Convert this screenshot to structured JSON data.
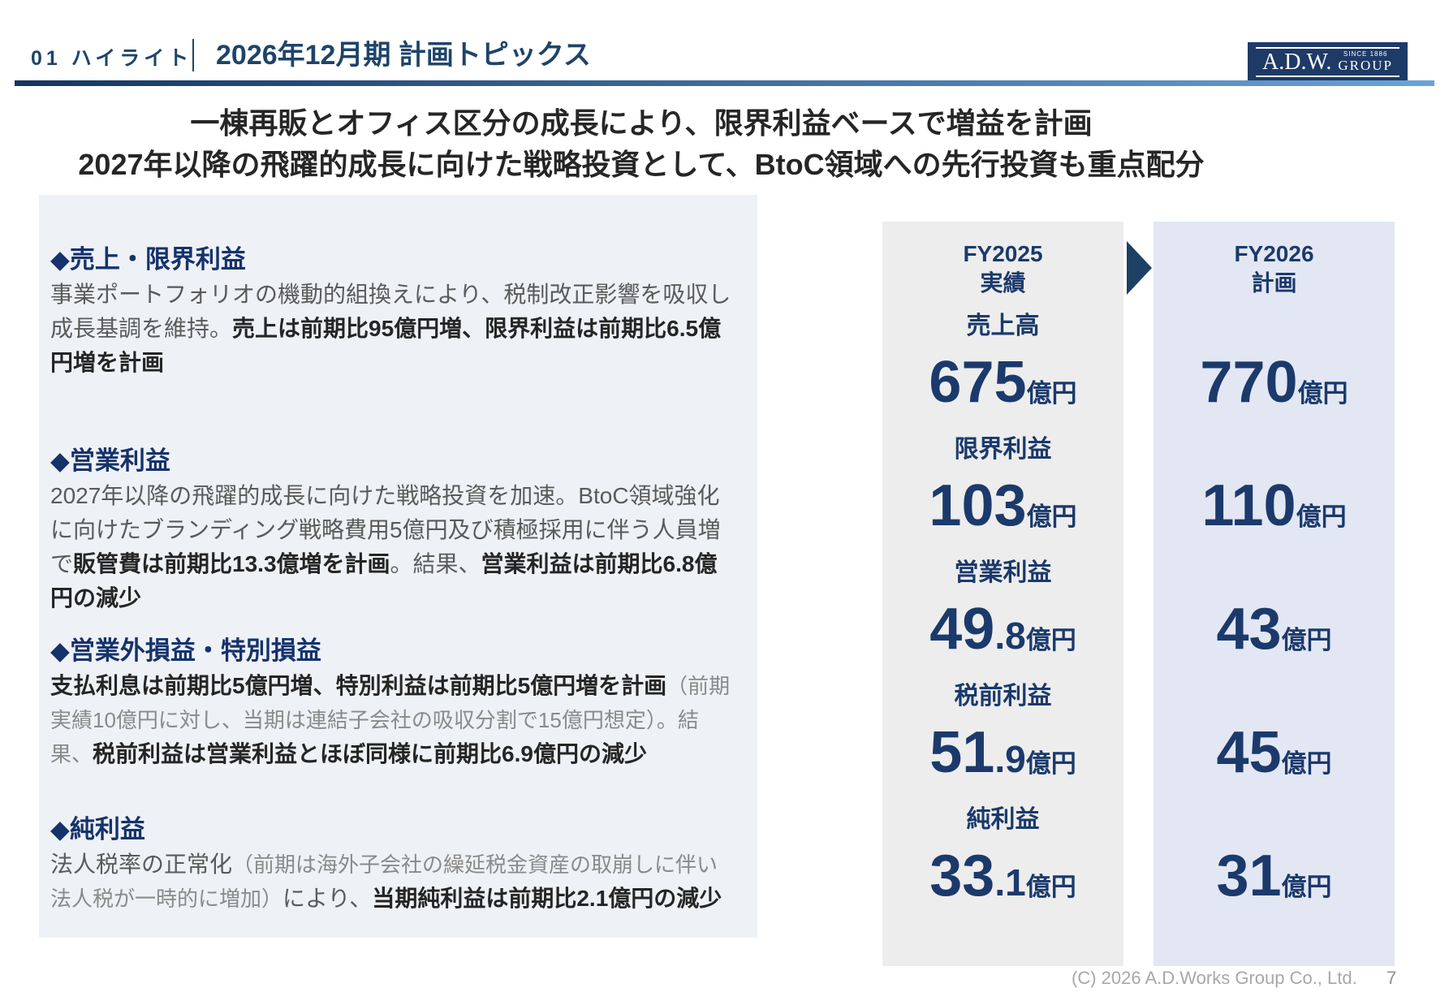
{
  "header": {
    "section_number": "01 ハイライト",
    "title": "2026年12月期 計画トピックス",
    "logo": {
      "name": "A.D.W.",
      "since": "SINCE 1886",
      "group": "GROUP"
    }
  },
  "lead": {
    "line1": "一棟再販とオフィス区分の成長により、限界利益ベースで増益を計画",
    "line2": "2027年以降の飛躍的成長に向けた戦略投資として、BtoC領域への先行投資も重点配分"
  },
  "left_panel": {
    "sections": [
      {
        "heading": "◆売上・限界利益",
        "body": [
          {
            "style": "normal",
            "text": "事業ポートフォリオの機動的組換えにより、税制改正影響を吸収し成長基調を維持。"
          },
          {
            "style": "bold",
            "text": "売上は前期比95億円増、限界利益は前期比6.5億円増を計画"
          }
        ]
      },
      {
        "heading": "◆営業利益",
        "body": [
          {
            "style": "normal",
            "text": "2027年以降の飛躍的成長に向けた戦略投資を加速。BtoC領域強化に向けたブランディング戦略費用5億円及び積極採用に伴う人員増で"
          },
          {
            "style": "bold",
            "text": "販管費は前期比13.3億増を計画"
          },
          {
            "style": "normal",
            "text": "。結果、"
          },
          {
            "style": "bold",
            "text": "営業利益は前期比6.8億円の減少"
          }
        ]
      },
      {
        "heading": "◆営業外損益・特別損益",
        "body": [
          {
            "style": "bold",
            "text": "支払利息は前期比5億円増、特別利益は前期比5億円増を計画"
          },
          {
            "style": "light",
            "text": "（前期実績10億円に対し、当期は連結子会社の吸収分割で15億円想定）。結果、"
          },
          {
            "style": "bold",
            "text": "税前利益は営業利益とほぼ同様に前期比6.9億円の減少"
          }
        ]
      },
      {
        "heading": "◆純利益",
        "body": [
          {
            "style": "normal",
            "text": "法人税率の正常化"
          },
          {
            "style": "light",
            "text": "（前期は海外子会社の繰延税金資産の取崩しに伴い法人税が一時的に増加）"
          },
          {
            "style": "normal",
            "text": "により、"
          },
          {
            "style": "bold",
            "text": "当期純利益は前期比2.1億円の減少"
          }
        ]
      }
    ]
  },
  "comparison": {
    "fy2025_header": {
      "line1": "FY2025",
      "line2": "実績"
    },
    "fy2026_header": {
      "line1": "FY2026",
      "line2": "計画"
    },
    "rows": [
      {
        "metric": "売上高",
        "fy2025": {
          "value": "675",
          "decimal": "",
          "unit": "億円"
        },
        "fy2026": {
          "value": "770",
          "decimal": "",
          "unit": "億円"
        }
      },
      {
        "metric": "限界利益",
        "fy2025": {
          "value": "103",
          "decimal": "",
          "unit": "億円"
        },
        "fy2026": {
          "value": "110",
          "decimal": "",
          "unit": "億円"
        }
      },
      {
        "metric": "営業利益",
        "fy2025": {
          "value": "49",
          "decimal": ".8",
          "unit": "億円"
        },
        "fy2026": {
          "value": "43",
          "decimal": "",
          "unit": "億円"
        }
      },
      {
        "metric": "税前利益",
        "fy2025": {
          "value": "51",
          "decimal": ".9",
          "unit": "億円"
        },
        "fy2026": {
          "value": "45",
          "decimal": "",
          "unit": "億円"
        }
      },
      {
        "metric": "純利益",
        "fy2025": {
          "value": "33",
          "decimal": ".1",
          "unit": "億円"
        },
        "fy2026": {
          "value": "31",
          "decimal": "",
          "unit": "億円"
        }
      }
    ]
  },
  "footer": {
    "copyright": "(C) 2026  A.D.Works Group Co., Ltd.",
    "page": "7"
  },
  "icons": {
    "transition_arrow": "right-triangle"
  },
  "colors": {
    "accent_navy": "#1b3a6b",
    "header_navy": "#1e4469",
    "rule_gradient_start": "#16355d",
    "rule_gradient_end": "#6aa3d8",
    "left_panel_bg": "#eef1f6",
    "fy2025_bg": "#ededed",
    "fy2026_bg": "#e3e7f3",
    "logo_bg": "#1e3a66",
    "body_text": "#5a5a5a",
    "body_bold": "#252525",
    "body_light": "#8a8a8a"
  }
}
